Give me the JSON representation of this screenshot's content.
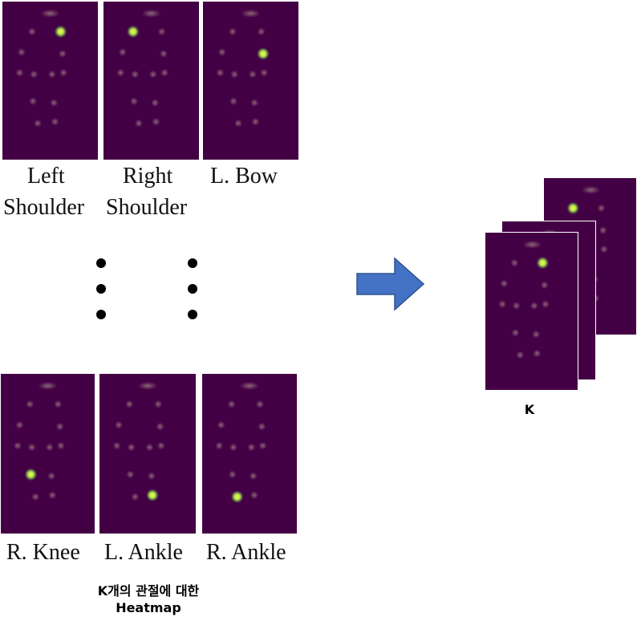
{
  "panel_colors": {
    "background": "#440044",
    "joint": "#8f6a7a",
    "highlight": "#b8e040"
  },
  "top_labels": [
    {
      "line1": "Left",
      "line2": "Shoulder"
    },
    {
      "line1": "Right",
      "line2": "Shoulder"
    },
    {
      "line1": "L. Bow",
      "line2": ""
    }
  ],
  "bottom_labels": [
    "R. Knee",
    "L. Ankle",
    "R. Ankle"
  ],
  "caption": {
    "line1": "K개의 관절에 대한",
    "line2": "Heatmap"
  },
  "stack_label": "K",
  "arrow_color": "#4472c4"
}
